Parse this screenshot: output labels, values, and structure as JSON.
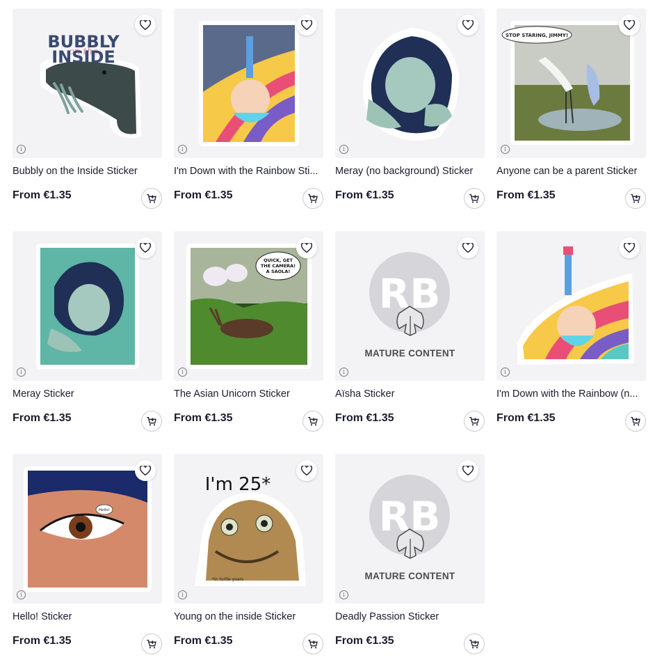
{
  "products": [
    {
      "title": "Bubbly on the Inside Sticker",
      "price": "From €1.35",
      "art": "whale-sticker",
      "art_text": [
        "BUBBLY",
        "on the",
        "INSIDE"
      ]
    },
    {
      "title": "I'm Down with the Rainbow Sti...",
      "price": "From €1.35",
      "art": "rainbow-rectangle-sticker"
    },
    {
      "title": "Meray (no background) Sticker",
      "price": "From €1.35",
      "art": "meray-nobg-sticker"
    },
    {
      "title": "Anyone can be a parent Sticker",
      "price": "From €1.35",
      "art": "crane-sticker",
      "art_text": [
        "STOP STARING, JIMMY!"
      ]
    },
    {
      "title": "Meray Sticker",
      "price": "From €1.35",
      "art": "meray-sticker"
    },
    {
      "title": "The Asian Unicorn Sticker",
      "price": "From €1.35",
      "art": "saola-sticker",
      "art_text": [
        "QUICK, GET",
        "THE CAMERA!",
        "A SAOLA!"
      ]
    },
    {
      "title": "Aïsha Sticker",
      "price": "From €1.35",
      "art": "mature-placeholder",
      "mature_label": "MATURE CONTENT"
    },
    {
      "title": "I'm Down with the Rainbow (n...",
      "price": "From €1.35",
      "art": "rainbow-diecut-sticker"
    },
    {
      "title": "Hello! Sticker",
      "price": "From €1.35",
      "art": "eye-spider-sticker",
      "art_text": [
        "Hello!"
      ]
    },
    {
      "title": "Young on the inside Sticker",
      "price": "From €1.35",
      "art": "turtle-sticker",
      "art_text": [
        "I'm 25*",
        "*in turtle years"
      ]
    },
    {
      "title": "Deadly Passion Sticker",
      "price": "From €1.35",
      "art": "mature-placeholder",
      "mature_label": "MATURE CONTENT"
    }
  ],
  "icons": {
    "favorite": "heart-outline-icon",
    "cart": "add-to-cart-icon",
    "info": "info-icon"
  },
  "colors": {
    "text": "#1b1b2f",
    "thumb_bg": "#f3f3f5",
    "placeholder_circle": "#d6d6da"
  }
}
